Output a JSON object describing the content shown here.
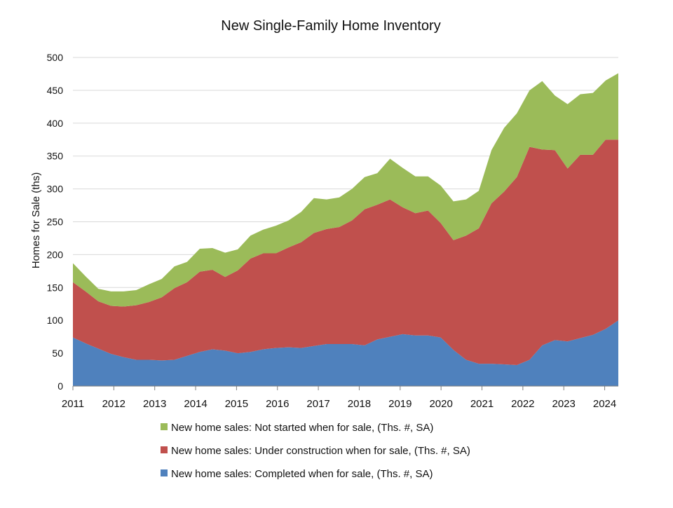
{
  "chart_data": {
    "type": "area",
    "stacked": true,
    "title": "New Single-Family Home Inventory",
    "xlabel": "",
    "ylabel": "Homes for Sale (ths)",
    "ylim": [
      0,
      500
    ],
    "yticks": [
      0,
      50,
      100,
      150,
      200,
      250,
      300,
      350,
      400,
      450,
      500
    ],
    "xticks": [
      "2011",
      "2012",
      "2013",
      "2014",
      "2015",
      "2016",
      "2017",
      "2018",
      "2019",
      "2020",
      "2021",
      "2022",
      "2023",
      "2024"
    ],
    "x_start": "2011-01",
    "x_end": "2024-05",
    "x_interval": "quarterly",
    "grid": true,
    "legend_position": "bottom",
    "series": [
      {
        "name": "New home sales: Completed when for sale, (Ths. #, SA)",
        "color": "#4F81BD",
        "values": [
          74,
          65,
          57,
          49,
          44,
          40,
          40,
          39,
          40,
          46,
          52,
          56,
          54,
          50,
          52,
          56,
          58,
          59,
          58,
          61,
          64,
          64,
          64,
          62,
          71,
          75,
          79,
          77,
          77,
          74,
          55,
          40,
          34,
          34,
          33,
          32,
          40,
          62,
          70,
          68,
          73,
          78,
          87,
          100
        ]
      },
      {
        "name": "New home sales: Under construction when for sale, (Ths. #, SA)",
        "color": "#C0504D",
        "values": [
          84,
          79,
          72,
          73,
          77,
          83,
          88,
          96,
          109,
          112,
          122,
          121,
          112,
          126,
          142,
          146,
          144,
          152,
          161,
          172,
          175,
          178,
          188,
          207,
          205,
          209,
          193,
          186,
          190,
          174,
          167,
          189,
          206,
          244,
          263,
          286,
          324,
          298,
          289,
          263,
          279,
          274,
          288,
          275
        ]
      },
      {
        "name": "New home sales: Not started when for sale, (Ths. #, SA)",
        "color": "#9BBB59",
        "values": [
          29,
          23,
          19,
          22,
          23,
          23,
          27,
          28,
          33,
          31,
          35,
          33,
          37,
          32,
          35,
          36,
          42,
          41,
          46,
          53,
          45,
          45,
          48,
          49,
          48,
          62,
          60,
          56,
          52,
          57,
          59,
          55,
          57,
          81,
          97,
          97,
          86,
          104,
          83,
          98,
          92,
          94,
          90,
          101
        ]
      }
    ]
  }
}
